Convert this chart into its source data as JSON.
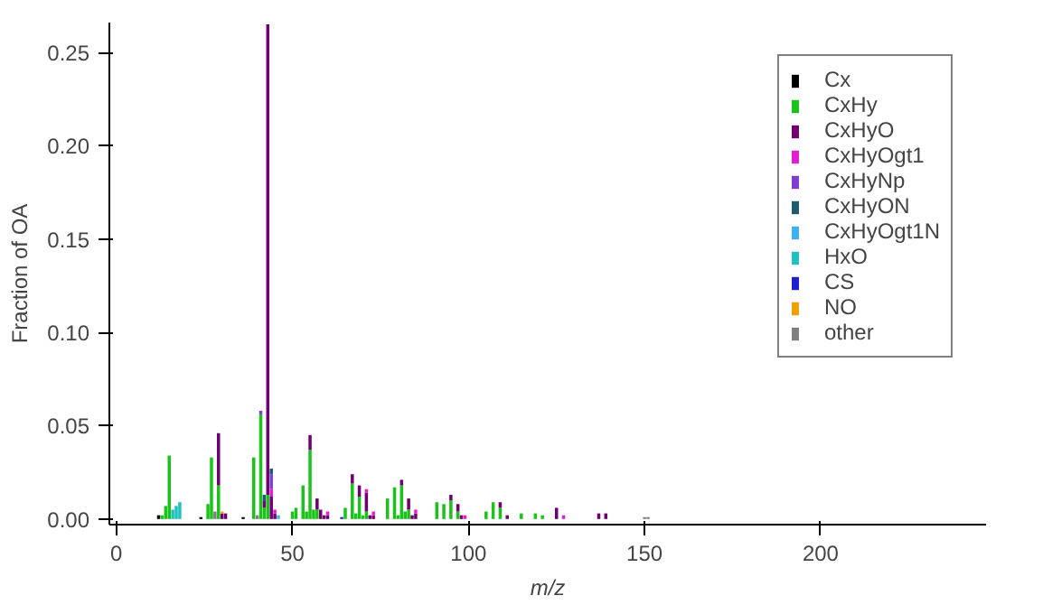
{
  "chart_data": {
    "type": "bar",
    "stacked": true,
    "xlabel": "m/z",
    "ylabel": "Fraction of OA",
    "xlim": [
      -2,
      247
    ],
    "ylim": [
      -0.003,
      0.266
    ],
    "xticks": [
      0,
      50,
      100,
      150,
      200
    ],
    "yticks": [
      {
        "value": 0,
        "label": "0.00"
      },
      {
        "value": 0.05,
        "label": "0.05"
      },
      {
        "value": 0.1,
        "label": "0.10"
      },
      {
        "value": 0.15,
        "label": "0.15"
      },
      {
        "value": 0.2,
        "label": "0.20"
      },
      {
        "value": 0.25,
        "label": "0.25"
      }
    ],
    "grid": false,
    "legend": "top right",
    "x": [
      12,
      13,
      14,
      15,
      16,
      17,
      18,
      24,
      26,
      27,
      28,
      29,
      30,
      31,
      36,
      39,
      40,
      41,
      42,
      43,
      44,
      45,
      46,
      50,
      51,
      53,
      54,
      55,
      56,
      57,
      58,
      59,
      60,
      64,
      65,
      67,
      68,
      69,
      70,
      71,
      72,
      73,
      77,
      79,
      80,
      81,
      82,
      83,
      84,
      85,
      91,
      93,
      95,
      97,
      98,
      99,
      105,
      107,
      109,
      111,
      115,
      119,
      121,
      125,
      127,
      137,
      139,
      150,
      151
    ],
    "series": [
      {
        "name": "Cx",
        "color": "#000000",
        "values": [
          0.002,
          null,
          null,
          null,
          null,
          null,
          null,
          0.001,
          null,
          null,
          null,
          null,
          null,
          null,
          0.001,
          null,
          null,
          null,
          null,
          null,
          null,
          null,
          null,
          null,
          null,
          null,
          null,
          null,
          null,
          null,
          null,
          null,
          null,
          null,
          null,
          null,
          null,
          null,
          null,
          null,
          null,
          null,
          null,
          null,
          null,
          null,
          null,
          null,
          null,
          null,
          null,
          null,
          null,
          null,
          null,
          null,
          null,
          null,
          null,
          null,
          null,
          null,
          null,
          null,
          null,
          null,
          null,
          null,
          null
        ]
      },
      {
        "name": "CxHy",
        "color": "#19c319",
        "values": [
          null,
          0.002,
          0.007,
          0.034,
          null,
          null,
          null,
          null,
          0.008,
          0.033,
          null,
          0.018,
          null,
          null,
          null,
          0.033,
          null,
          0.056,
          0.006,
          0.013,
          null,
          null,
          null,
          0.004,
          0.006,
          0.018,
          0.004,
          0.037,
          0.005,
          0.005,
          null,
          null,
          null,
          null,
          0.006,
          0.019,
          0.003,
          0.012,
          0.002,
          0.004,
          null,
          null,
          0.011,
          0.017,
          0.002,
          0.018,
          0.004,
          0.005,
          null,
          null,
          0.009,
          0.008,
          0.01,
          0.004,
          null,
          null,
          0.004,
          0.009,
          0.006,
          null,
          0.003,
          0.003,
          0.002,
          null,
          null,
          null,
          null,
          null,
          null
        ]
      },
      {
        "name": "CxHyO",
        "color": "#6f006f",
        "values": [
          null,
          null,
          null,
          null,
          null,
          null,
          null,
          null,
          null,
          null,
          null,
          0.028,
          0.003,
          0.003,
          null,
          null,
          null,
          null,
          0.004,
          0.252,
          0.012,
          0.003,
          null,
          null,
          null,
          null,
          null,
          0.008,
          null,
          0.006,
          0.005,
          0.002,
          0.002,
          null,
          null,
          0.005,
          null,
          0.006,
          null,
          0.01,
          0.002,
          0.002,
          null,
          null,
          null,
          0.003,
          null,
          0.006,
          0.002,
          0.003,
          null,
          null,
          0.003,
          0.004,
          0.002,
          null,
          null,
          null,
          0.003,
          0.002,
          null,
          null,
          null,
          0.006,
          null,
          0.003,
          0.003,
          null,
          null
        ]
      },
      {
        "name": "CxHyOgt1",
        "color": "#e020d0",
        "values": [
          null,
          null,
          null,
          null,
          null,
          null,
          null,
          null,
          null,
          null,
          null,
          null,
          null,
          null,
          null,
          null,
          null,
          null,
          null,
          null,
          0.004,
          0.002,
          null,
          null,
          null,
          null,
          null,
          null,
          null,
          null,
          null,
          null,
          0.002,
          null,
          null,
          null,
          null,
          null,
          null,
          0.002,
          null,
          0.002,
          null,
          null,
          null,
          null,
          null,
          null,
          null,
          0.002,
          null,
          null,
          null,
          null,
          null,
          0.002,
          null,
          null,
          null,
          null,
          null,
          null,
          null,
          null,
          0.002,
          null,
          null,
          null,
          null
        ]
      },
      {
        "name": "CxHyNp",
        "color": "#7b3fd1",
        "values": [
          null,
          null,
          null,
          null,
          null,
          null,
          null,
          null,
          null,
          null,
          null,
          null,
          null,
          null,
          null,
          null,
          null,
          0.002,
          null,
          null,
          0.008,
          null,
          null,
          null,
          null,
          null,
          null,
          null,
          null,
          null,
          null,
          null,
          null,
          null,
          null,
          null,
          null,
          null,
          null,
          null,
          null,
          null,
          null,
          null,
          null,
          null,
          null,
          null,
          null,
          null,
          null,
          null,
          null,
          null,
          null,
          null,
          null,
          null,
          null,
          null,
          null,
          null,
          null,
          null,
          null,
          null,
          null,
          null,
          null
        ]
      },
      {
        "name": "CxHyON",
        "color": "#1f5a6e",
        "values": [
          null,
          null,
          null,
          null,
          null,
          null,
          null,
          null,
          null,
          null,
          null,
          null,
          null,
          null,
          null,
          null,
          null,
          null,
          0.003,
          null,
          0.003,
          null,
          null,
          null,
          null,
          null,
          null,
          null,
          null,
          null,
          null,
          null,
          null,
          null,
          null,
          null,
          null,
          null,
          null,
          null,
          null,
          null,
          null,
          null,
          null,
          null,
          null,
          null,
          null,
          null,
          null,
          null,
          null,
          null,
          null,
          null,
          null,
          null,
          null,
          null,
          null,
          null,
          null,
          null,
          null,
          null,
          null,
          null,
          null
        ]
      },
      {
        "name": "CxHyOgt1N",
        "color": "#40b0f0",
        "values": [
          null,
          null,
          null,
          null,
          null,
          null,
          null,
          null,
          null,
          null,
          null,
          null,
          null,
          null,
          null,
          null,
          null,
          null,
          null,
          null,
          null,
          null,
          0.002,
          null,
          null,
          null,
          null,
          null,
          null,
          null,
          null,
          null,
          null,
          null,
          null,
          null,
          null,
          null,
          null,
          null,
          null,
          null,
          null,
          null,
          null,
          null,
          null,
          null,
          null,
          null,
          null,
          null,
          null,
          null,
          null,
          null,
          null,
          null,
          null,
          null,
          null,
          null,
          null,
          null,
          null,
          null,
          null,
          null,
          null
        ]
      },
      {
        "name": "HxO",
        "color": "#20c0c0",
        "values": [
          null,
          null,
          null,
          null,
          0.005,
          0.007,
          0.009,
          null,
          null,
          null,
          null,
          null,
          null,
          null,
          null,
          null,
          null,
          null,
          null,
          null,
          null,
          null,
          null,
          null,
          null,
          null,
          null,
          null,
          null,
          null,
          null,
          null,
          null,
          null,
          null,
          null,
          null,
          null,
          null,
          null,
          null,
          null,
          null,
          null,
          null,
          null,
          null,
          null,
          null,
          null,
          null,
          null,
          null,
          null,
          null,
          null,
          null,
          null,
          null,
          null,
          null,
          null,
          null,
          null,
          null,
          null,
          null,
          null,
          null
        ]
      },
      {
        "name": "CS",
        "color": "#2020d0",
        "values": [
          null,
          null,
          null,
          null,
          null,
          null,
          null,
          null,
          null,
          null,
          null,
          null,
          null,
          null,
          null,
          null,
          null,
          null,
          null,
          null,
          null,
          null,
          null,
          null,
          null,
          null,
          null,
          null,
          null,
          null,
          null,
          null,
          null,
          0.001,
          null,
          null,
          null,
          null,
          null,
          null,
          null,
          null,
          null,
          null,
          null,
          null,
          null,
          null,
          null,
          null,
          null,
          null,
          null,
          null,
          null,
          null,
          null,
          null,
          null,
          null,
          null,
          null,
          null,
          null,
          null,
          null,
          null,
          null,
          null
        ]
      },
      {
        "name": "NO",
        "color": "#f0a000",
        "values": [
          null,
          null,
          null,
          null,
          null,
          null,
          null,
          null,
          null,
          null,
          null,
          null,
          0.001,
          null,
          null,
          null,
          null,
          null,
          null,
          null,
          null,
          null,
          null,
          null,
          null,
          null,
          null,
          null,
          null,
          null,
          null,
          null,
          null,
          null,
          null,
          null,
          null,
          null,
          null,
          null,
          null,
          null,
          null,
          null,
          null,
          null,
          null,
          null,
          null,
          null,
          null,
          null,
          null,
          null,
          null,
          null,
          null,
          null,
          null,
          null,
          null,
          null,
          null,
          null,
          null,
          null,
          null,
          null,
          null
        ]
      },
      {
        "name": "other",
        "color": "#808080",
        "values": [
          null,
          null,
          null,
          null,
          null,
          null,
          null,
          null,
          null,
          null,
          0.004,
          null,
          null,
          null,
          null,
          null,
          0.002,
          null,
          null,
          null,
          null,
          null,
          null,
          null,
          null,
          null,
          null,
          null,
          null,
          null,
          null,
          null,
          null,
          null,
          null,
          null,
          null,
          null,
          null,
          null,
          null,
          null,
          null,
          null,
          null,
          null,
          null,
          null,
          null,
          null,
          null,
          null,
          null,
          null,
          null,
          null,
          null,
          null,
          null,
          null,
          null,
          null,
          null,
          null,
          null,
          null,
          null,
          0.001,
          0.001
        ]
      }
    ]
  }
}
